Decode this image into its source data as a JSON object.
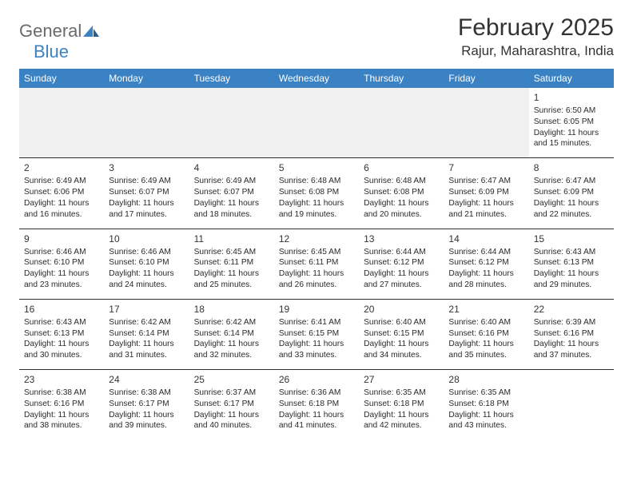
{
  "logo": {
    "text1": "General",
    "text2": "Blue"
  },
  "title": "February 2025",
  "location": "Rajur, Maharashtra, India",
  "colors": {
    "header_bg": "#3b82c4",
    "header_text": "#ffffff",
    "blank_bg": "#f0f0f0",
    "border": "#2f2f2f",
    "text": "#2a2a2a",
    "title_text": "#333333",
    "logo_gray": "#6a6a6a",
    "logo_blue": "#3b82c4"
  },
  "day_headers": [
    "Sunday",
    "Monday",
    "Tuesday",
    "Wednesday",
    "Thursday",
    "Friday",
    "Saturday"
  ],
  "weeks": [
    [
      {
        "blank": true
      },
      {
        "blank": true
      },
      {
        "blank": true
      },
      {
        "blank": true
      },
      {
        "blank": true
      },
      {
        "blank": true
      },
      {
        "day": "1",
        "sunrise": "Sunrise: 6:50 AM",
        "sunset": "Sunset: 6:05 PM",
        "daylight": "Daylight: 11 hours and 15 minutes."
      }
    ],
    [
      {
        "day": "2",
        "sunrise": "Sunrise: 6:49 AM",
        "sunset": "Sunset: 6:06 PM",
        "daylight": "Daylight: 11 hours and 16 minutes."
      },
      {
        "day": "3",
        "sunrise": "Sunrise: 6:49 AM",
        "sunset": "Sunset: 6:07 PM",
        "daylight": "Daylight: 11 hours and 17 minutes."
      },
      {
        "day": "4",
        "sunrise": "Sunrise: 6:49 AM",
        "sunset": "Sunset: 6:07 PM",
        "daylight": "Daylight: 11 hours and 18 minutes."
      },
      {
        "day": "5",
        "sunrise": "Sunrise: 6:48 AM",
        "sunset": "Sunset: 6:08 PM",
        "daylight": "Daylight: 11 hours and 19 minutes."
      },
      {
        "day": "6",
        "sunrise": "Sunrise: 6:48 AM",
        "sunset": "Sunset: 6:08 PM",
        "daylight": "Daylight: 11 hours and 20 minutes."
      },
      {
        "day": "7",
        "sunrise": "Sunrise: 6:47 AM",
        "sunset": "Sunset: 6:09 PM",
        "daylight": "Daylight: 11 hours and 21 minutes."
      },
      {
        "day": "8",
        "sunrise": "Sunrise: 6:47 AM",
        "sunset": "Sunset: 6:09 PM",
        "daylight": "Daylight: 11 hours and 22 minutes."
      }
    ],
    [
      {
        "day": "9",
        "sunrise": "Sunrise: 6:46 AM",
        "sunset": "Sunset: 6:10 PM",
        "daylight": "Daylight: 11 hours and 23 minutes."
      },
      {
        "day": "10",
        "sunrise": "Sunrise: 6:46 AM",
        "sunset": "Sunset: 6:10 PM",
        "daylight": "Daylight: 11 hours and 24 minutes."
      },
      {
        "day": "11",
        "sunrise": "Sunrise: 6:45 AM",
        "sunset": "Sunset: 6:11 PM",
        "daylight": "Daylight: 11 hours and 25 minutes."
      },
      {
        "day": "12",
        "sunrise": "Sunrise: 6:45 AM",
        "sunset": "Sunset: 6:11 PM",
        "daylight": "Daylight: 11 hours and 26 minutes."
      },
      {
        "day": "13",
        "sunrise": "Sunrise: 6:44 AM",
        "sunset": "Sunset: 6:12 PM",
        "daylight": "Daylight: 11 hours and 27 minutes."
      },
      {
        "day": "14",
        "sunrise": "Sunrise: 6:44 AM",
        "sunset": "Sunset: 6:12 PM",
        "daylight": "Daylight: 11 hours and 28 minutes."
      },
      {
        "day": "15",
        "sunrise": "Sunrise: 6:43 AM",
        "sunset": "Sunset: 6:13 PM",
        "daylight": "Daylight: 11 hours and 29 minutes."
      }
    ],
    [
      {
        "day": "16",
        "sunrise": "Sunrise: 6:43 AM",
        "sunset": "Sunset: 6:13 PM",
        "daylight": "Daylight: 11 hours and 30 minutes."
      },
      {
        "day": "17",
        "sunrise": "Sunrise: 6:42 AM",
        "sunset": "Sunset: 6:14 PM",
        "daylight": "Daylight: 11 hours and 31 minutes."
      },
      {
        "day": "18",
        "sunrise": "Sunrise: 6:42 AM",
        "sunset": "Sunset: 6:14 PM",
        "daylight": "Daylight: 11 hours and 32 minutes."
      },
      {
        "day": "19",
        "sunrise": "Sunrise: 6:41 AM",
        "sunset": "Sunset: 6:15 PM",
        "daylight": "Daylight: 11 hours and 33 minutes."
      },
      {
        "day": "20",
        "sunrise": "Sunrise: 6:40 AM",
        "sunset": "Sunset: 6:15 PM",
        "daylight": "Daylight: 11 hours and 34 minutes."
      },
      {
        "day": "21",
        "sunrise": "Sunrise: 6:40 AM",
        "sunset": "Sunset: 6:16 PM",
        "daylight": "Daylight: 11 hours and 35 minutes."
      },
      {
        "day": "22",
        "sunrise": "Sunrise: 6:39 AM",
        "sunset": "Sunset: 6:16 PM",
        "daylight": "Daylight: 11 hours and 37 minutes."
      }
    ],
    [
      {
        "day": "23",
        "sunrise": "Sunrise: 6:38 AM",
        "sunset": "Sunset: 6:16 PM",
        "daylight": "Daylight: 11 hours and 38 minutes."
      },
      {
        "day": "24",
        "sunrise": "Sunrise: 6:38 AM",
        "sunset": "Sunset: 6:17 PM",
        "daylight": "Daylight: 11 hours and 39 minutes."
      },
      {
        "day": "25",
        "sunrise": "Sunrise: 6:37 AM",
        "sunset": "Sunset: 6:17 PM",
        "daylight": "Daylight: 11 hours and 40 minutes."
      },
      {
        "day": "26",
        "sunrise": "Sunrise: 6:36 AM",
        "sunset": "Sunset: 6:18 PM",
        "daylight": "Daylight: 11 hours and 41 minutes."
      },
      {
        "day": "27",
        "sunrise": "Sunrise: 6:35 AM",
        "sunset": "Sunset: 6:18 PM",
        "daylight": "Daylight: 11 hours and 42 minutes."
      },
      {
        "day": "28",
        "sunrise": "Sunrise: 6:35 AM",
        "sunset": "Sunset: 6:18 PM",
        "daylight": "Daylight: 11 hours and 43 minutes."
      },
      {
        "blank": true,
        "noborder": false
      }
    ]
  ]
}
